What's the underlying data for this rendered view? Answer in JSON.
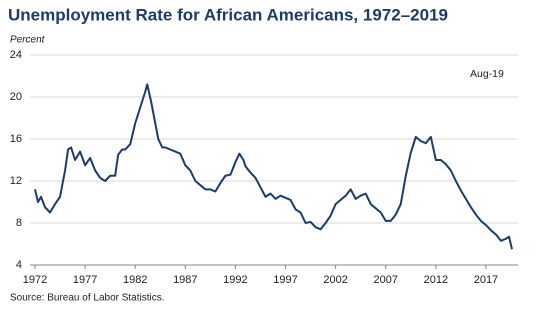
{
  "chart_data": {
    "type": "line",
    "title": "Unemployment Rate for African Americans, 1972–2019",
    "y_label": "Percent",
    "annotation": "Aug-19",
    "source": "Source: Bureau of Labor Statistics.",
    "x": [
      1972.0,
      1972.3,
      1972.6,
      1973.0,
      1973.5,
      1974.0,
      1974.5,
      1975.0,
      1975.3,
      1975.6,
      1976.0,
      1976.5,
      1977.0,
      1977.5,
      1978.0,
      1978.5,
      1979.0,
      1979.5,
      1980.0,
      1980.3,
      1980.7,
      1981.0,
      1981.5,
      1982.0,
      1982.5,
      1983.0,
      1983.2,
      1983.6,
      1984.0,
      1984.3,
      1984.7,
      1985.0,
      1985.5,
      1986.0,
      1986.5,
      1987.0,
      1987.5,
      1988.0,
      1988.5,
      1989.0,
      1989.5,
      1990.0,
      1990.5,
      1991.0,
      1991.5,
      1992.0,
      1992.4,
      1992.8,
      1993.0,
      1993.5,
      1994.0,
      1994.5,
      1995.0,
      1995.5,
      1996.0,
      1996.5,
      1997.0,
      1997.5,
      1998.0,
      1998.5,
      1999.0,
      1999.5,
      2000.0,
      2000.5,
      2001.0,
      2001.5,
      2002.0,
      2002.5,
      2003.0,
      2003.5,
      2004.0,
      2004.5,
      2005.0,
      2005.5,
      2006.0,
      2006.5,
      2007.0,
      2007.5,
      2008.0,
      2008.5,
      2009.0,
      2009.5,
      2010.0,
      2010.5,
      2011.0,
      2011.5,
      2012.0,
      2012.5,
      2013.0,
      2013.5,
      2014.0,
      2014.5,
      2015.0,
      2015.5,
      2016.0,
      2016.5,
      2017.0,
      2017.5,
      2018.0,
      2018.5,
      2019.0,
      2019.3,
      2019.6
    ],
    "series": [
      {
        "name": "Unemployment rate",
        "color": "#1c3c6a",
        "values": [
          11.2,
          10.0,
          10.5,
          9.5,
          9.0,
          9.8,
          10.5,
          13.0,
          15.0,
          15.2,
          14.0,
          14.8,
          13.5,
          14.2,
          13.0,
          12.3,
          12.0,
          12.5,
          12.5,
          14.5,
          15.0,
          15.0,
          15.5,
          17.5,
          19.0,
          20.5,
          21.2,
          19.5,
          17.5,
          16.0,
          15.2,
          15.2,
          15.0,
          14.8,
          14.6,
          13.5,
          13.0,
          12.0,
          11.6,
          11.2,
          11.2,
          11.0,
          11.8,
          12.5,
          12.6,
          13.8,
          14.6,
          14.0,
          13.4,
          12.8,
          12.3,
          11.4,
          10.5,
          10.8,
          10.3,
          10.6,
          10.4,
          10.2,
          9.3,
          9.0,
          8.0,
          8.1,
          7.6,
          7.4,
          8.0,
          8.7,
          9.8,
          10.2,
          10.6,
          11.2,
          10.3,
          10.6,
          10.8,
          9.8,
          9.4,
          9.0,
          8.2,
          8.2,
          8.8,
          9.8,
          12.5,
          14.7,
          16.2,
          15.8,
          15.6,
          16.2,
          14.0,
          14.0,
          13.6,
          13.0,
          12.0,
          11.1,
          10.3,
          9.5,
          8.8,
          8.2,
          7.8,
          7.3,
          6.9,
          6.3,
          6.5,
          6.7,
          5.5
        ]
      }
    ],
    "xlim": [
      1972,
      2019.6
    ],
    "xticks": [
      1972,
      1977,
      1982,
      1987,
      1992,
      1997,
      2002,
      2007,
      2012,
      2017
    ],
    "ylim": [
      4,
      24
    ],
    "yticks": [
      4,
      8,
      12,
      16,
      20,
      24
    ],
    "grid": true
  }
}
